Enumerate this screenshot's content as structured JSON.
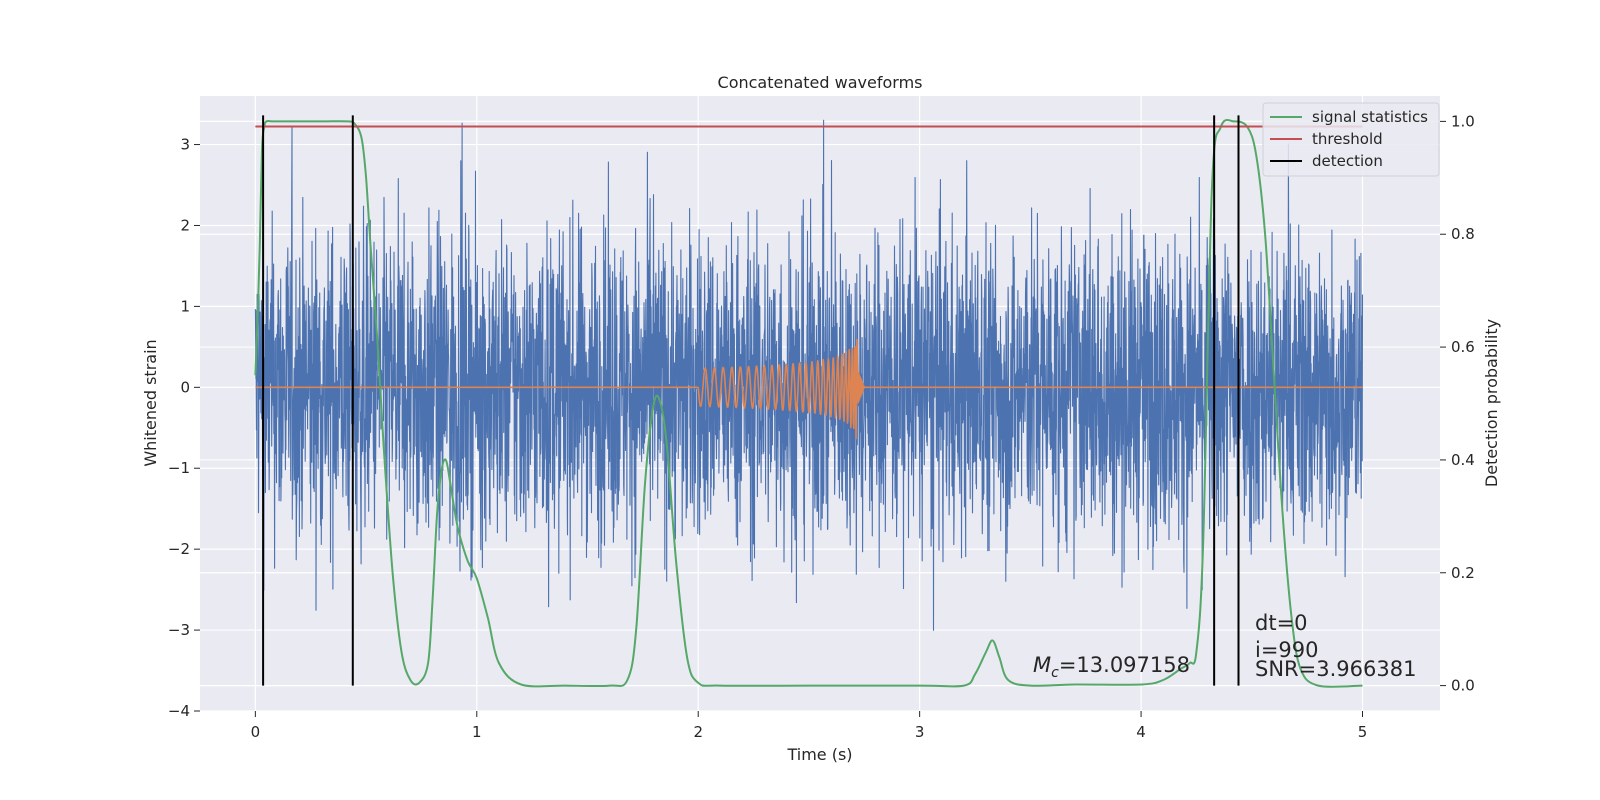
{
  "chart_data": {
    "type": "line",
    "title": "Concatenated waveforms",
    "xlabel": "Time (s)",
    "ylabel": "Whitened strain",
    "y2label": "Detection probability",
    "xlim": [
      -0.25,
      5.35
    ],
    "ylim": [
      -4.0,
      3.6
    ],
    "y2lim": [
      -0.045,
      1.045
    ],
    "xticks": [
      0,
      1,
      2,
      3,
      4,
      5
    ],
    "xtick_labels": [
      "0",
      "1",
      "2",
      "3",
      "4",
      "5"
    ],
    "yticks": [
      -4,
      -3,
      -2,
      -1,
      0,
      1,
      2,
      3
    ],
    "ytick_labels": [
      "−4",
      "−3",
      "−2",
      "−1",
      "0",
      "1",
      "2",
      "3"
    ],
    "y2ticks": [
      0.0,
      0.2,
      0.4,
      0.6,
      0.8,
      1.0
    ],
    "y2tick_labels": [
      "0.0",
      "0.2",
      "0.4",
      "0.6",
      "0.8",
      "1.0"
    ],
    "grid": true,
    "legend_position": "top-right",
    "legend": [
      {
        "label": "signal statistics",
        "color": "#55a868"
      },
      {
        "label": "threshold",
        "color": "#c44e52"
      },
      {
        "label": "detection",
        "color": "#000000"
      }
    ],
    "series": [
      {
        "role": "whitened strain noise",
        "color": "#4c72b0",
        "x_range": [
          0,
          5
        ],
        "typical_amplitude": 1.0,
        "max": 3.3,
        "min": -3.7
      },
      {
        "role": "injected waveform",
        "color": "#dd8452",
        "x_range": [
          0,
          5
        ],
        "chirp_start": 2.0,
        "merger_time": 2.72,
        "peak_amplitude": 0.78
      },
      {
        "name": "signal statistics",
        "axis": "right",
        "color": "#55a868",
        "x": [
          0.0,
          0.01,
          0.02,
          0.03,
          0.04,
          0.05,
          0.08,
          0.15,
          0.3,
          0.42,
          0.45,
          0.48,
          0.5,
          0.52,
          0.55,
          0.58,
          0.62,
          0.66,
          0.7,
          0.74,
          0.78,
          0.8,
          0.82,
          0.84,
          0.86,
          0.88,
          0.9,
          0.92,
          0.96,
          1.0,
          1.05,
          1.1,
          1.2,
          1.4,
          1.6,
          1.68,
          1.72,
          1.76,
          1.8,
          1.83,
          1.86,
          1.9,
          1.95,
          2.0,
          2.1,
          2.5,
          3.0,
          3.2,
          3.25,
          3.3,
          3.33,
          3.36,
          3.4,
          3.5,
          3.7,
          4.0,
          4.1,
          4.18,
          4.22,
          4.25,
          4.28,
          4.32,
          4.36,
          4.42,
          4.48,
          4.52,
          4.56,
          4.6,
          4.64,
          4.68,
          4.72,
          4.8,
          5.0
        ],
        "values": [
          0.55,
          0.65,
          0.78,
          0.95,
          0.99,
          1.0,
          1.0,
          1.0,
          1.0,
          1.0,
          0.995,
          0.97,
          0.9,
          0.78,
          0.62,
          0.42,
          0.2,
          0.06,
          0.01,
          0.005,
          0.04,
          0.15,
          0.3,
          0.38,
          0.4,
          0.36,
          0.31,
          0.27,
          0.22,
          0.19,
          0.12,
          0.04,
          0.002,
          0.0,
          0.0,
          0.01,
          0.1,
          0.36,
          0.5,
          0.5,
          0.42,
          0.22,
          0.05,
          0.005,
          0.0,
          0.0,
          0.0,
          0.0,
          0.02,
          0.06,
          0.08,
          0.05,
          0.01,
          0.0,
          0.002,
          0.002,
          0.01,
          0.03,
          0.04,
          0.06,
          0.25,
          0.88,
          0.99,
          1.0,
          0.99,
          0.94,
          0.8,
          0.55,
          0.3,
          0.12,
          0.03,
          0.0,
          0.0
        ]
      },
      {
        "name": "threshold",
        "axis": "right",
        "color": "#c44e52",
        "x": [
          0,
          5
        ],
        "values": [
          0.991,
          0.991
        ]
      }
    ],
    "detections": {
      "label": "detection",
      "color": "#000000",
      "times": [
        0.035,
        0.44,
        4.33,
        4.44
      ]
    },
    "annotations": {
      "mc_symbol": "M",
      "mc_subscript": "c",
      "mc_value": "=13.097158",
      "dt": "dt=0",
      "i": "i=990",
      "snr": "SNR=3.966381"
    }
  }
}
